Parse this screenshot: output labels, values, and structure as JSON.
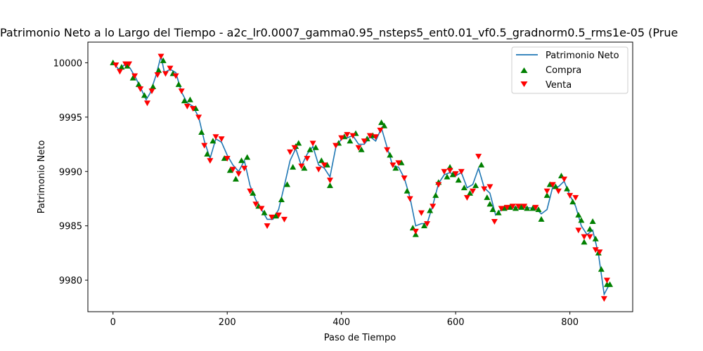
{
  "chart_data": {
    "type": "line",
    "title": "Patrimonio Neto a lo Largo del Tiempo - a2c_lr0.0007_gamma0.95_nsteps5_ent0.01_vf0.5_gradnorm0.5_rms1e-05 (Prue",
    "xlabel": "Paso de Tiempo",
    "ylabel": "Patrimonio Neto",
    "xlim": [
      -44,
      910
    ],
    "ylim": [
      9977.1,
      10001.9
    ],
    "xticks": [
      0,
      200,
      400,
      600,
      800
    ],
    "yticks": [
      9980,
      9985,
      9990,
      9995,
      10000
    ],
    "grid": false,
    "legend_position": "top-right",
    "colors": {
      "line": "#1f77b4",
      "buy": "#008000",
      "sell": "#ff0000"
    },
    "series": [
      {
        "name": "Patrimonio Neto",
        "kind": "line",
        "points": [
          [
            0,
            10000
          ],
          [
            10,
            9999.4
          ],
          [
            20,
            9999.8
          ],
          [
            30,
            9999.5
          ],
          [
            40,
            9998.6
          ],
          [
            50,
            9997.5
          ],
          [
            58,
            9996.6
          ],
          [
            65,
            9997.2
          ],
          [
            75,
            9998.8
          ],
          [
            84,
            10000.6
          ],
          [
            90,
            9999.1
          ],
          [
            100,
            9999.4
          ],
          [
            110,
            9999.1
          ],
          [
            120,
            9997.3
          ],
          [
            130,
            9996.3
          ],
          [
            140,
            9996.0
          ],
          [
            150,
            9995.0
          ],
          [
            160,
            9992.8
          ],
          [
            170,
            9991.2
          ],
          [
            180,
            9993.0
          ],
          [
            190,
            9992.7
          ],
          [
            200,
            9991.5
          ],
          [
            210,
            9990.6
          ],
          [
            220,
            9990.0
          ],
          [
            230,
            9991.0
          ],
          [
            240,
            9988.7
          ],
          [
            250,
            9987.4
          ],
          [
            260,
            9986.5
          ],
          [
            270,
            9985.6
          ],
          [
            280,
            9985.6
          ],
          [
            290,
            9986.5
          ],
          [
            300,
            9988.7
          ],
          [
            310,
            9991.0
          ],
          [
            320,
            9992.1
          ],
          [
            330,
            9990.5
          ],
          [
            340,
            9991.6
          ],
          [
            350,
            9992.3
          ],
          [
            360,
            9990.6
          ],
          [
            370,
            9990.3
          ],
          [
            380,
            9989.5
          ],
          [
            390,
            9992.2
          ],
          [
            400,
            9993.0
          ],
          [
            410,
            9993.1
          ],
          [
            420,
            9993.3
          ],
          [
            430,
            9992.5
          ],
          [
            440,
            9992.5
          ],
          [
            450,
            9993.2
          ],
          [
            460,
            9992.8
          ],
          [
            470,
            9994.0
          ],
          [
            480,
            9992.2
          ],
          [
            490,
            9990.5
          ],
          [
            500,
            9990.4
          ],
          [
            510,
            9989.4
          ],
          [
            520,
            9987.6
          ],
          [
            530,
            9985.0
          ],
          [
            540,
            9985.2
          ],
          [
            550,
            9985.2
          ],
          [
            560,
            9986.9
          ],
          [
            570,
            9988.9
          ],
          [
            580,
            9989.7
          ],
          [
            590,
            9989.9
          ],
          [
            600,
            9989.6
          ],
          [
            610,
            9989.9
          ],
          [
            620,
            9988.5
          ],
          [
            630,
            9988.8
          ],
          [
            640,
            9990.3
          ],
          [
            650,
            9988.5
          ],
          [
            660,
            9988.0
          ],
          [
            670,
            9986.0
          ],
          [
            680,
            9986.5
          ],
          [
            690,
            9986.7
          ],
          [
            700,
            9986.7
          ],
          [
            720,
            9986.7
          ],
          [
            740,
            9986.6
          ],
          [
            750,
            9986.1
          ],
          [
            760,
            9986.5
          ],
          [
            770,
            9988.6
          ],
          [
            780,
            9988.6
          ],
          [
            790,
            9989.1
          ],
          [
            800,
            9987.8
          ],
          [
            810,
            9986.8
          ],
          [
            820,
            9985.0
          ],
          [
            830,
            9984.2
          ],
          [
            840,
            9984.6
          ],
          [
            850,
            9982.4
          ],
          [
            860,
            9978.7
          ],
          [
            870,
            9979.7
          ]
        ]
      },
      {
        "name": "Compra",
        "kind": "buy",
        "points": [
          [
            0,
            10000
          ],
          [
            15,
            9999.6
          ],
          [
            25,
            9999.7
          ],
          [
            35,
            9998.6
          ],
          [
            45,
            9998.0
          ],
          [
            55,
            9997.0
          ],
          [
            70,
            9997.8
          ],
          [
            80,
            9999.3
          ],
          [
            88,
            10000.2
          ],
          [
            105,
            9999.0
          ],
          [
            115,
            9998.0
          ],
          [
            125,
            9996.5
          ],
          [
            135,
            9996.6
          ],
          [
            145,
            9995.8
          ],
          [
            155,
            9993.6
          ],
          [
            165,
            9991.6
          ],
          [
            175,
            9992.8
          ],
          [
            195,
            9991.2
          ],
          [
            205,
            9990.1
          ],
          [
            215,
            9989.3
          ],
          [
            225,
            9991.0
          ],
          [
            235,
            9991.3
          ],
          [
            245,
            9988.0
          ],
          [
            255,
            9986.8
          ],
          [
            265,
            9986.2
          ],
          [
            285,
            9985.9
          ],
          [
            295,
            9987.4
          ],
          [
            305,
            9988.8
          ],
          [
            315,
            9990.4
          ],
          [
            320,
            9992.3
          ],
          [
            325,
            9992.6
          ],
          [
            335,
            9990.3
          ],
          [
            345,
            9992.0
          ],
          [
            355,
            9992.2
          ],
          [
            365,
            9991.0
          ],
          [
            375,
            9990.6
          ],
          [
            380,
            9988.7
          ],
          [
            395,
            9992.6
          ],
          [
            405,
            9993.2
          ],
          [
            415,
            9992.8
          ],
          [
            425,
            9993.5
          ],
          [
            435,
            9992.0
          ],
          [
            445,
            9993.0
          ],
          [
            455,
            9993.3
          ],
          [
            470,
            9994.5
          ],
          [
            475,
            9994.2
          ],
          [
            485,
            9991.5
          ],
          [
            495,
            9990.3
          ],
          [
            505,
            9990.8
          ],
          [
            515,
            9988.2
          ],
          [
            525,
            9984.8
          ],
          [
            530,
            9984.2
          ],
          [
            545,
            9985.0
          ],
          [
            555,
            9986.4
          ],
          [
            565,
            9987.8
          ],
          [
            570,
            9989.0
          ],
          [
            585,
            9989.5
          ],
          [
            590,
            9990.4
          ],
          [
            595,
            9989.7
          ],
          [
            605,
            9989.2
          ],
          [
            615,
            9988.5
          ],
          [
            625,
            9988.0
          ],
          [
            635,
            9988.7
          ],
          [
            645,
            9990.6
          ],
          [
            655,
            9987.6
          ],
          [
            660,
            9987.0
          ],
          [
            665,
            9986.5
          ],
          [
            675,
            9986.2
          ],
          [
            685,
            9986.6
          ],
          [
            695,
            9986.7
          ],
          [
            705,
            9986.6
          ],
          [
            715,
            9986.7
          ],
          [
            725,
            9986.6
          ],
          [
            735,
            9986.6
          ],
          [
            745,
            9986.5
          ],
          [
            750,
            9985.6
          ],
          [
            760,
            9987.8
          ],
          [
            765,
            9988.8
          ],
          [
            775,
            9988.6
          ],
          [
            785,
            9989.6
          ],
          [
            795,
            9988.4
          ],
          [
            805,
            9987.2
          ],
          [
            815,
            9986.0
          ],
          [
            820,
            9985.5
          ],
          [
            825,
            9983.5
          ],
          [
            835,
            9984.7
          ],
          [
            840,
            9985.4
          ],
          [
            845,
            9983.8
          ],
          [
            850,
            9982.5
          ],
          [
            855,
            9981.0
          ],
          [
            865,
            9979.6
          ],
          [
            870,
            9979.6
          ]
        ]
      },
      {
        "name": "Venta",
        "kind": "sell",
        "points": [
          [
            5,
            9999.8
          ],
          [
            12,
            9999.2
          ],
          [
            22,
            9999.9
          ],
          [
            28,
            9999.9
          ],
          [
            38,
            9998.8
          ],
          [
            48,
            9997.6
          ],
          [
            60,
            9996.3
          ],
          [
            68,
            9997.4
          ],
          [
            78,
            9998.9
          ],
          [
            84,
            10000.6
          ],
          [
            92,
            9999.0
          ],
          [
            100,
            9999.5
          ],
          [
            110,
            9998.8
          ],
          [
            120,
            9997.4
          ],
          [
            130,
            9996.0
          ],
          [
            140,
            9995.8
          ],
          [
            150,
            9995.0
          ],
          [
            160,
            9992.4
          ],
          [
            170,
            9991.0
          ],
          [
            180,
            9993.2
          ],
          [
            190,
            9993.0
          ],
          [
            200,
            9991.2
          ],
          [
            210,
            9990.2
          ],
          [
            220,
            9989.8
          ],
          [
            230,
            9990.3
          ],
          [
            240,
            9988.2
          ],
          [
            250,
            9987.0
          ],
          [
            260,
            9986.6
          ],
          [
            270,
            9985.0
          ],
          [
            278,
            9985.8
          ],
          [
            290,
            9986.0
          ],
          [
            300,
            9985.6
          ],
          [
            310,
            9991.8
          ],
          [
            318,
            9992.2
          ],
          [
            330,
            9990.5
          ],
          [
            340,
            9991.2
          ],
          [
            350,
            9992.6
          ],
          [
            360,
            9990.2
          ],
          [
            370,
            9990.6
          ],
          [
            380,
            9989.2
          ],
          [
            390,
            9992.4
          ],
          [
            400,
            9993.1
          ],
          [
            410,
            9993.4
          ],
          [
            420,
            9993.3
          ],
          [
            430,
            9992.2
          ],
          [
            440,
            9992.8
          ],
          [
            450,
            9993.3
          ],
          [
            460,
            9993.2
          ],
          [
            468,
            9993.8
          ],
          [
            480,
            9992.0
          ],
          [
            490,
            9990.6
          ],
          [
            500,
            9990.8
          ],
          [
            510,
            9989.4
          ],
          [
            520,
            9987.5
          ],
          [
            530,
            9984.5
          ],
          [
            540,
            9986.2
          ],
          [
            550,
            9985.2
          ],
          [
            560,
            9986.8
          ],
          [
            570,
            9988.8
          ],
          [
            580,
            9990.0
          ],
          [
            590,
            9990.1
          ],
          [
            600,
            9989.8
          ],
          [
            610,
            9990.0
          ],
          [
            620,
            9987.6
          ],
          [
            630,
            9988.2
          ],
          [
            640,
            9991.4
          ],
          [
            650,
            9988.4
          ],
          [
            660,
            9988.6
          ],
          [
            668,
            9985.4
          ],
          [
            680,
            9986.6
          ],
          [
            690,
            9986.7
          ],
          [
            700,
            9986.8
          ],
          [
            710,
            9986.8
          ],
          [
            720,
            9986.8
          ],
          [
            740,
            9986.7
          ],
          [
            760,
            9988.2
          ],
          [
            770,
            9988.8
          ],
          [
            780,
            9988.2
          ],
          [
            790,
            9989.3
          ],
          [
            800,
            9987.8
          ],
          [
            810,
            9987.6
          ],
          [
            815,
            9984.6
          ],
          [
            825,
            9984.0
          ],
          [
            835,
            9984.0
          ],
          [
            845,
            9982.8
          ],
          [
            852,
            9982.6
          ],
          [
            860,
            9978.3
          ],
          [
            865,
            9980.0
          ]
        ]
      }
    ]
  }
}
